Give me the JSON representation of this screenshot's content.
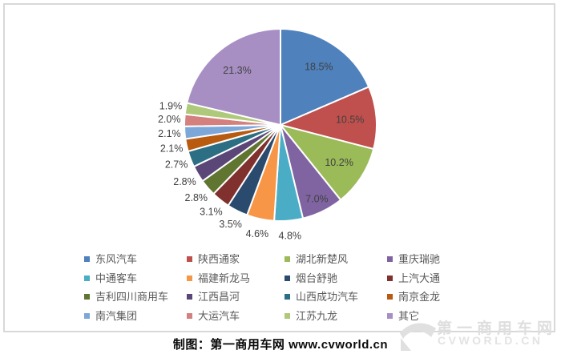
{
  "chart_data": {
    "type": "pie",
    "legend_position": "bottom",
    "legend_columns": 4,
    "start_angle_deg": 0,
    "direction": "clockwise",
    "label_color": "#404040",
    "slice_border_color": "#FFFFFF",
    "slices": [
      {
        "name": "东风汽车",
        "value": 18.5,
        "label": "18.5%",
        "color": "#4F81BD",
        "label_inside": true
      },
      {
        "name": "陕西通家",
        "value": 10.5,
        "label": "10.5%",
        "color": "#C0504D",
        "label_inside": true
      },
      {
        "name": "湖北新楚风",
        "value": 10.2,
        "label": "10.2%",
        "color": "#9BBB59",
        "label_inside": true
      },
      {
        "name": "重庆瑞驰",
        "value": 7.0,
        "label": "7.0%",
        "color": "#8064A2",
        "label_inside": true
      },
      {
        "name": "中通客车",
        "value": 4.8,
        "label": "4.8%",
        "color": "#4BACC6",
        "label_inside": false
      },
      {
        "name": "福建新龙马",
        "value": 4.6,
        "label": "4.6%",
        "color": "#F79646",
        "label_inside": false
      },
      {
        "name": "烟台舒驰",
        "value": 3.5,
        "label": "3.5%",
        "color": "#2A4A6E",
        "label_inside": false
      },
      {
        "name": "上汽大通",
        "value": 3.1,
        "label": "3.1%",
        "color": "#80312E",
        "label_inside": false
      },
      {
        "name": "吉利四川商用车",
        "value": 2.8,
        "label": "2.8%",
        "color": "#5F7530",
        "label_inside": false
      },
      {
        "name": "江西昌河",
        "value": 2.8,
        "label": "2.8%",
        "color": "#5A4778",
        "label_inside": false
      },
      {
        "name": "山西成功汽车",
        "value": 2.7,
        "label": "2.7%",
        "color": "#2C6E83",
        "label_inside": false
      },
      {
        "name": "南京金龙",
        "value": 2.1,
        "label": "2.1%",
        "color": "#B85A10",
        "label_inside": false
      },
      {
        "name": "南汽集团",
        "value": 2.1,
        "label": "2.1%",
        "color": "#7DA7D8",
        "label_inside": false
      },
      {
        "name": "大运汽车",
        "value": 2.0,
        "label": "2.0%",
        "color": "#D3807E",
        "label_inside": false
      },
      {
        "name": "江苏九龙",
        "value": 1.9,
        "label": "1.9%",
        "color": "#AFC97A",
        "label_inside": false
      },
      {
        "name": "其它",
        "value": 21.3,
        "label": "21.3%",
        "color": "#A78FC4",
        "label_inside": true
      }
    ]
  },
  "caption": {
    "text": "制图：第一商用车网 www.cvworld.cn"
  },
  "watermark": {
    "site_name": "第一商用车网",
    "site_url": "CVWORLD.CN"
  }
}
